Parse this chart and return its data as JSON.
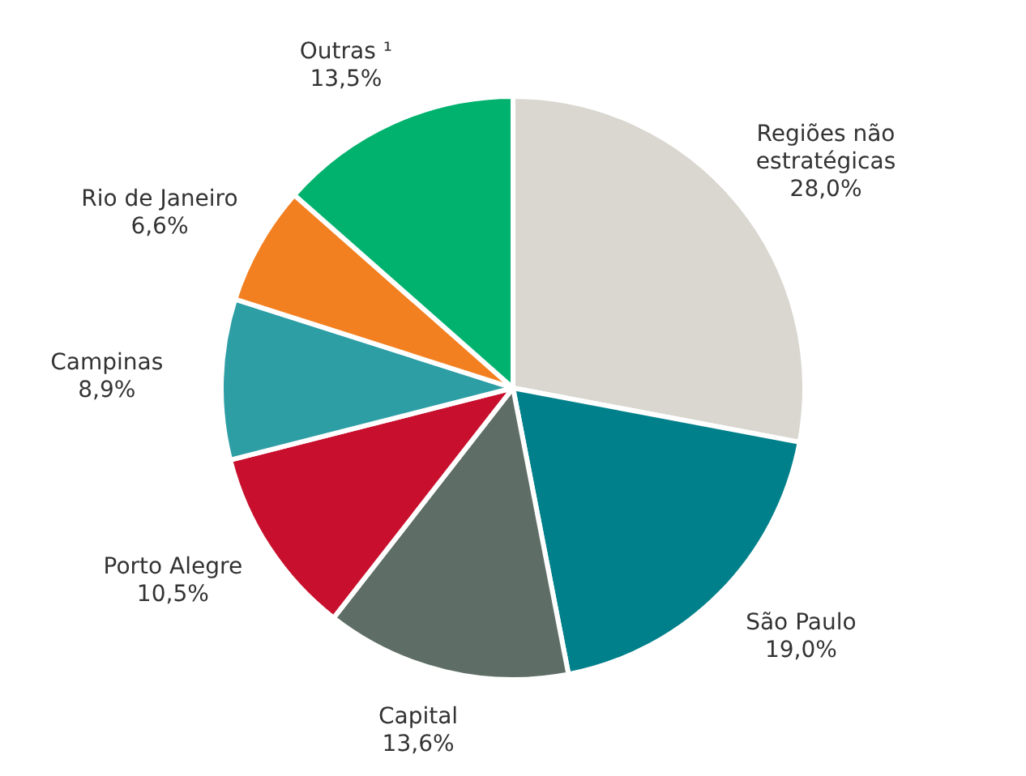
{
  "chart_data": {
    "type": "pie",
    "categories": [
      "Regiões não estratégicas",
      "São Paulo",
      "Capital",
      "Porto Alegre",
      "Campinas",
      "Rio de Janeiro",
      "Outras ¹"
    ],
    "values": [
      28.0,
      19.0,
      13.6,
      10.5,
      8.9,
      6.6,
      13.5
    ],
    "value_labels": [
      "28,0%",
      "19,0%",
      "13,6%",
      "10,5%",
      "8,9%",
      "6,6%",
      "13,5%"
    ],
    "colors": [
      "#d9d7d0",
      "#00808a",
      "#5e6e66",
      "#c8102e",
      "#2e9ea5",
      "#f38020",
      "#00b26e"
    ],
    "legend": false
  }
}
